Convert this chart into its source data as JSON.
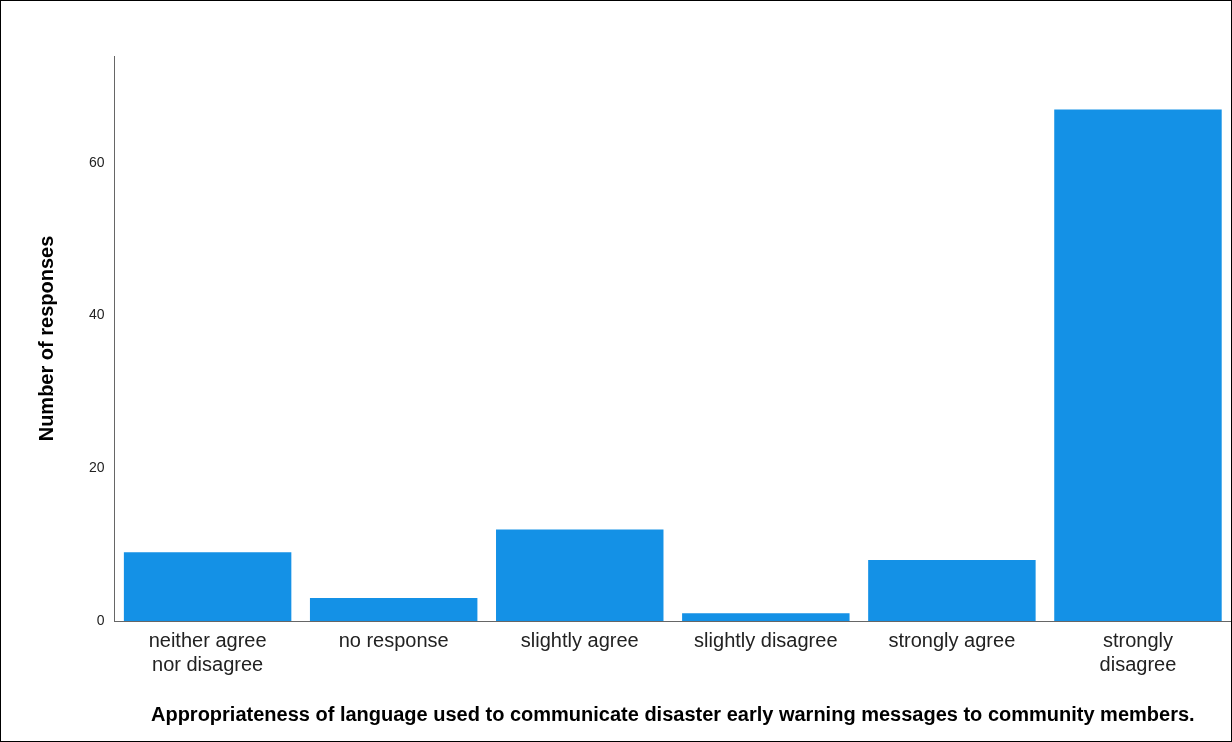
{
  "chart_data": {
    "type": "bar",
    "xlabel": "Appropriateness of language used to communicate disaster early warning messages to community members.",
    "ylabel": "Number of responses",
    "categories": [
      "neither agree nor disagree",
      "no response",
      "slightly agree",
      "slightly disagree",
      "strongly agree",
      "strongly disagree"
    ],
    "values": [
      9,
      3,
      12,
      1,
      8,
      67
    ],
    "color": "#1491e6",
    "ylim": [
      0,
      74
    ],
    "yticks": [
      0,
      20,
      40,
      60
    ],
    "grid": false,
    "legend": false
  }
}
